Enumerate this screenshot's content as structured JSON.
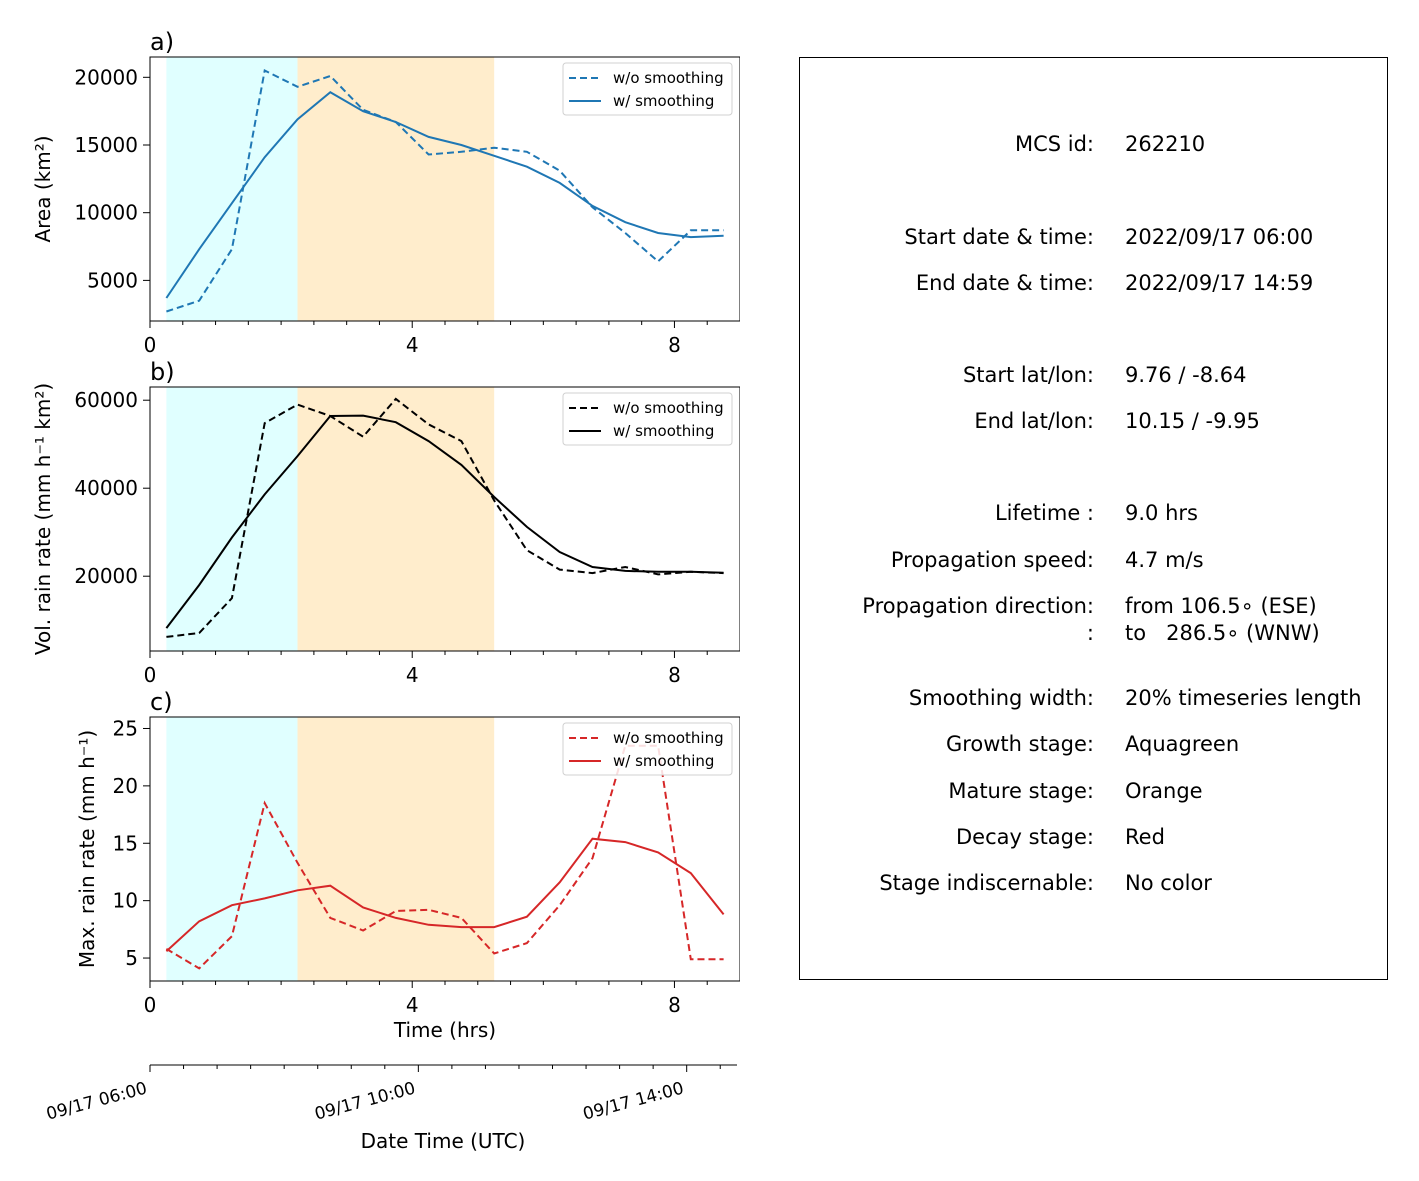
{
  "chart_data": [
    {
      "type": "line",
      "panel_label": "a)",
      "ylabel": "Area  (km²)",
      "xlim": [
        0,
        9
      ],
      "ylim": [
        2000,
        21500
      ],
      "yticks": [
        5000,
        10000,
        15000,
        20000
      ],
      "xticks": [
        0,
        4,
        8
      ],
      "color": "#1f77b4",
      "x": [
        0.25,
        0.75,
        1.25,
        1.75,
        2.25,
        2.75,
        3.25,
        3.75,
        4.25,
        4.75,
        5.25,
        5.75,
        6.25,
        6.75,
        7.25,
        7.75,
        8.25,
        8.75
      ],
      "series": [
        {
          "name": "w/o smoothing",
          "style": "dashed",
          "values": [
            2700,
            3500,
            7300,
            20500,
            19300,
            20100,
            17600,
            16700,
            14300,
            14500,
            14800,
            14500,
            13100,
            10400,
            8500,
            6400,
            8700,
            8700
          ]
        },
        {
          "name": "w/ smoothing",
          "style": "solid",
          "values": [
            3700,
            7300,
            10700,
            14100,
            16900,
            18900,
            17500,
            16700,
            15600,
            15000,
            14200,
            13400,
            12200,
            10500,
            9300,
            8500,
            8200,
            8300
          ]
        }
      ],
      "legend": "top-right"
    },
    {
      "type": "line",
      "panel_label": "b)",
      "ylabel": "Vol. rain rate (mm h⁻¹ km²)",
      "xlim": [
        0,
        9
      ],
      "ylim": [
        3000,
        63000
      ],
      "yticks": [
        20000,
        40000,
        60000
      ],
      "xticks": [
        0,
        4,
        8
      ],
      "color": "#000000",
      "x": [
        0.25,
        0.75,
        1.25,
        1.75,
        2.25,
        2.75,
        3.25,
        3.75,
        4.25,
        4.75,
        5.25,
        5.75,
        6.25,
        6.75,
        7.25,
        7.75,
        8.25,
        8.75
      ],
      "series": [
        {
          "name": "w/o smoothing",
          "style": "dashed",
          "values": [
            6200,
            7100,
            15000,
            54800,
            59000,
            56400,
            51700,
            60300,
            54500,
            50700,
            37200,
            25900,
            21500,
            20700,
            22100,
            20400,
            21000,
            20700
          ]
        },
        {
          "name": "w/ smoothing",
          "style": "solid",
          "values": [
            8200,
            18000,
            28800,
            38600,
            47300,
            56400,
            56500,
            55000,
            50700,
            45300,
            38000,
            31200,
            25500,
            22100,
            21200,
            21000,
            21000,
            20800
          ]
        }
      ],
      "legend": "top-right"
    },
    {
      "type": "line",
      "panel_label": "c)",
      "ylabel": "Max. rain rate  (mm h⁻¹)",
      "xlabel": "Time (hrs)",
      "xlim": [
        0,
        9
      ],
      "ylim": [
        3,
        26
      ],
      "yticks": [
        5,
        10,
        15,
        20,
        25
      ],
      "xticks": [
        0,
        4,
        8
      ],
      "color": "#d62728",
      "x": [
        0.25,
        0.75,
        1.25,
        1.75,
        2.25,
        2.75,
        3.25,
        3.75,
        4.25,
        4.75,
        5.25,
        5.75,
        6.25,
        6.75,
        7.25,
        7.75,
        8.25,
        8.75
      ],
      "series": [
        {
          "name": "w/o smoothing",
          "style": "dashed",
          "values": [
            5.8,
            4.1,
            6.9,
            18.5,
            13.3,
            8.5,
            7.4,
            9.1,
            9.2,
            8.5,
            5.4,
            6.3,
            9.6,
            13.7,
            23.5,
            23.5,
            4.9,
            4.9
          ]
        },
        {
          "name": "w/ smoothing",
          "style": "solid",
          "values": [
            5.6,
            8.2,
            9.6,
            10.2,
            10.9,
            11.3,
            9.4,
            8.5,
            7.9,
            7.7,
            7.7,
            8.6,
            11.6,
            15.4,
            15.1,
            14.2,
            12.4,
            8.8
          ]
        }
      ],
      "legend": "top-right"
    }
  ],
  "stage_shading": {
    "growth": {
      "from": 0.25,
      "to": 2.25,
      "color": "#e0ffff"
    },
    "mature": {
      "from": 2.25,
      "to": 5.25,
      "color": "#ffedcc"
    }
  },
  "datetime_axis": {
    "xlabel": "Date Time (UTC)",
    "ticks": [
      {
        "x": 0,
        "label": "09/17 06:00"
      },
      {
        "x": 4,
        "label": "09/17 10:00"
      },
      {
        "x": 8,
        "label": "09/17 14:00"
      }
    ]
  },
  "info": {
    "mcs_id": {
      "label": "MCS id:",
      "value": "262210"
    },
    "start_time": {
      "label": "Start date & time:",
      "value": "2022/09/17 06:00"
    },
    "end_time": {
      "label": "End date & time:",
      "value": "2022/09/17 14:59"
    },
    "start_latlon": {
      "label": "Start lat/lon:",
      "value": "9.76 / -8.64"
    },
    "end_latlon": {
      "label": "End lat/lon:",
      "value": "10.15 / -9.95"
    },
    "lifetime": {
      "label": "Lifetime :",
      "value": "9.0 hrs"
    },
    "speed": {
      "label": "Propagation speed:",
      "value": "4.7 m/s"
    },
    "direction_from": {
      "label": "Propagation direction:",
      "value": "from 106.5∘ (ESE)"
    },
    "direction_to": {
      "label": ":",
      "value": "to   286.5∘ (WNW)"
    },
    "smoothing": {
      "label": "Smoothing width:",
      "value": "20% timeseries length"
    },
    "growth": {
      "label": "Growth stage:",
      "value": "Aquagreen"
    },
    "mature": {
      "label": "Mature stage:",
      "value": "Orange"
    },
    "decay": {
      "label": "Decay stage:",
      "value": "Red"
    },
    "indiscernable": {
      "label": "Stage indiscernable:",
      "value": "No color"
    }
  }
}
